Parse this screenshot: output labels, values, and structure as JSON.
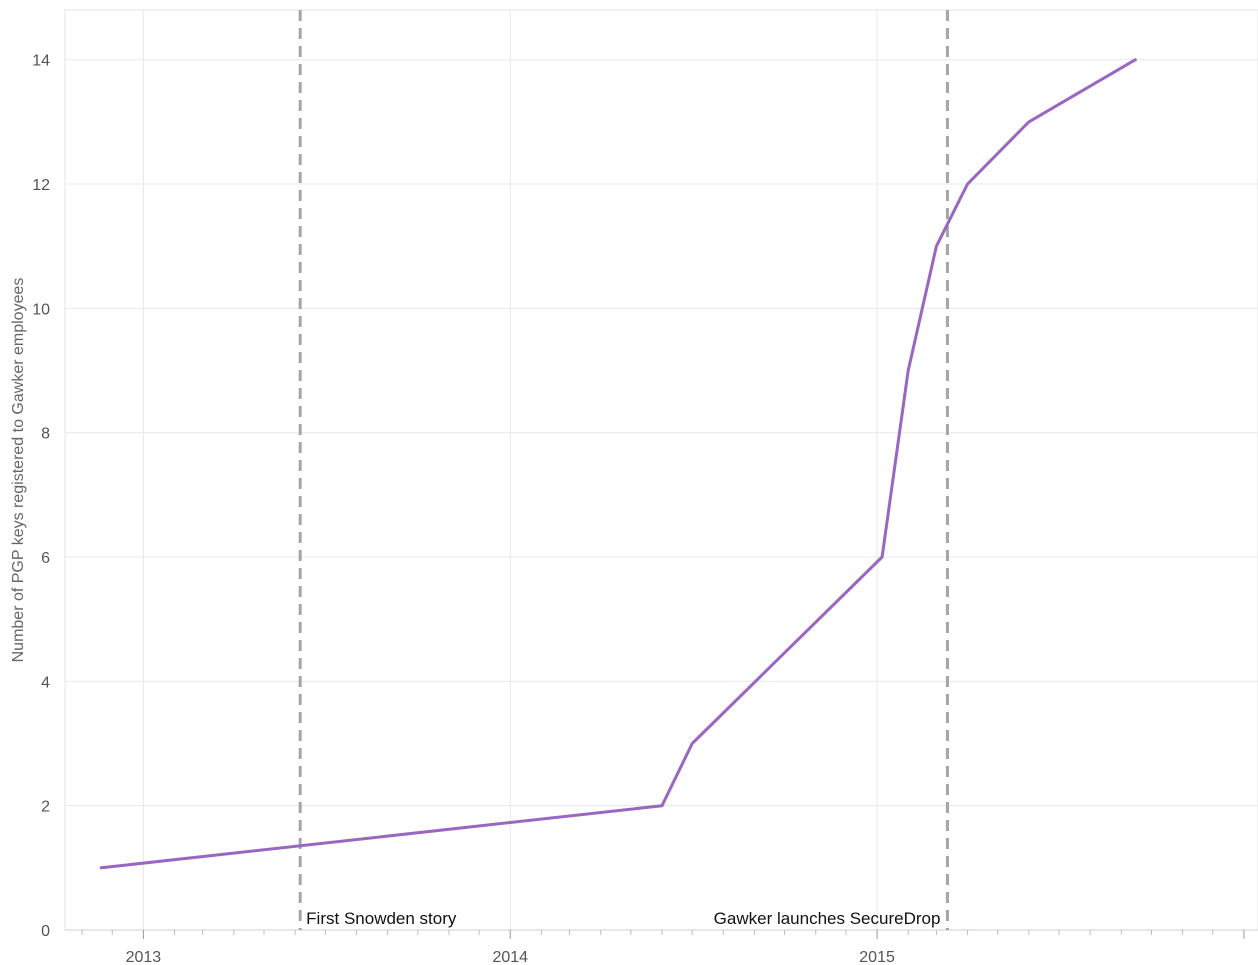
{
  "chart_data": {
    "type": "line",
    "title": "",
    "xlabel": "",
    "ylabel": "Number of PGP keys registered to Gawker employees",
    "x_ticks": [
      "2013",
      "2014",
      "2015"
    ],
    "y_ticks": [
      0,
      2,
      4,
      6,
      8,
      10,
      12,
      14
    ],
    "xlim": [
      "2012-10-15",
      "2016-01-15"
    ],
    "ylim": [
      0,
      14.8
    ],
    "grid": true,
    "line_color": "#9966c2",
    "series": [
      {
        "x": [
          "2012-11-20",
          "2014-06-01",
          "2014-07-01",
          "2015-01-06",
          "2015-02-01",
          "2015-03-01",
          "2015-04-01",
          "2015-06-01",
          "2015-09-15"
        ],
        "y": [
          1,
          2,
          3,
          6,
          9,
          11,
          12,
          13,
          14
        ]
      }
    ],
    "annotations": [
      {
        "date": "2013-06-06",
        "label": "First Snowden story"
      },
      {
        "date": "2015-03-12",
        "label": "Gawker launches SecureDrop"
      }
    ]
  }
}
